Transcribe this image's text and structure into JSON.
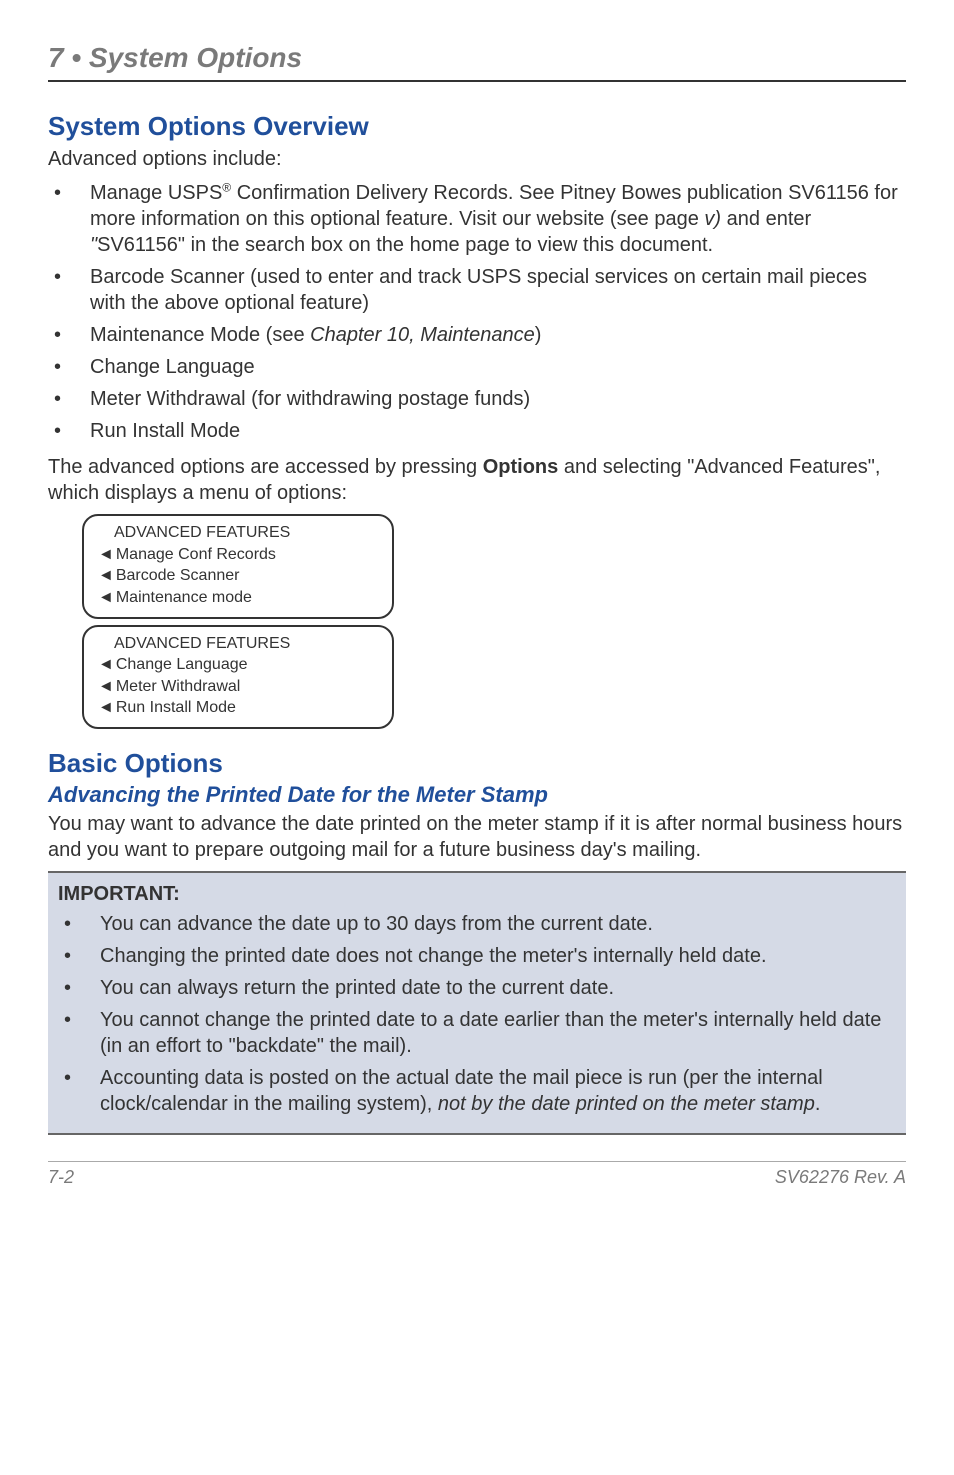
{
  "chapter": {
    "title": "7 • System Options"
  },
  "section1": {
    "heading": "System Options Overview",
    "intro": "Advanced options include:",
    "bullets": [
      {
        "html": "Manage USPS<span class='reg'>®</span> Confirmation Delivery Records. See Pitney Bowes publication SV61156 for more information on this optional feature. Visit our website (see page <i>v)</i> and enter <i>\"</i>SV61156\" in the search box on the home page to view this document."
      },
      {
        "text": "Barcode Scanner (used to enter and track USPS special services on certain mail pieces with the above optional feature)"
      },
      {
        "html": "Maintenance Mode (see <i>Chapter 10, Maintenance</i>)"
      },
      {
        "text": "Change Language"
      },
      {
        "text": "Meter Withdrawal (for withdrawing postage funds)"
      },
      {
        "text": "Run Install Mode"
      }
    ],
    "outro_html": "The advanced options are accessed by pressing <b>Options</b> and selecting \"Advanced Features\", which displays a menu of options:"
  },
  "menu1": {
    "title": "ADVANCED FEATURES",
    "items": [
      "Manage Conf Records",
      "Barcode Scanner",
      "Maintenance mode"
    ]
  },
  "menu2": {
    "title": "ADVANCED FEATURES",
    "items": [
      "Change Language",
      "Meter Withdrawal",
      "Run Install Mode"
    ]
  },
  "section2": {
    "heading": "Basic Options",
    "subheading": "Advancing the Printed Date for the Meter Stamp",
    "body": "You may want to advance the date printed on the meter stamp if it is after normal business hours and you want to prepare outgoing mail for a future business day's mailing."
  },
  "important": {
    "title": "IMPORTANT:",
    "bullets": [
      {
        "text": "You can advance the date up to 30 days from the current date."
      },
      {
        "text": "Changing the printed date does not change the meter's internally held date."
      },
      {
        "text": "You can always return the printed date to the current date."
      },
      {
        "text": "You cannot change the printed date to a date earlier than the meter's internally held date (in an effort to \"backdate\" the mail)."
      },
      {
        "html": "Accounting data is posted on the actual date the mail piece is run (per the internal clock/calendar in the mailing system), <i>not by the date printed on the meter stamp</i>."
      }
    ]
  },
  "footer": {
    "left": "7-2",
    "right": "SV62276 Rev. A"
  },
  "style": {
    "heading_color": "#204f9b",
    "text_color": "#333333",
    "important_bg": "#d5dae6",
    "chapter_color": "#7a7a7a"
  }
}
